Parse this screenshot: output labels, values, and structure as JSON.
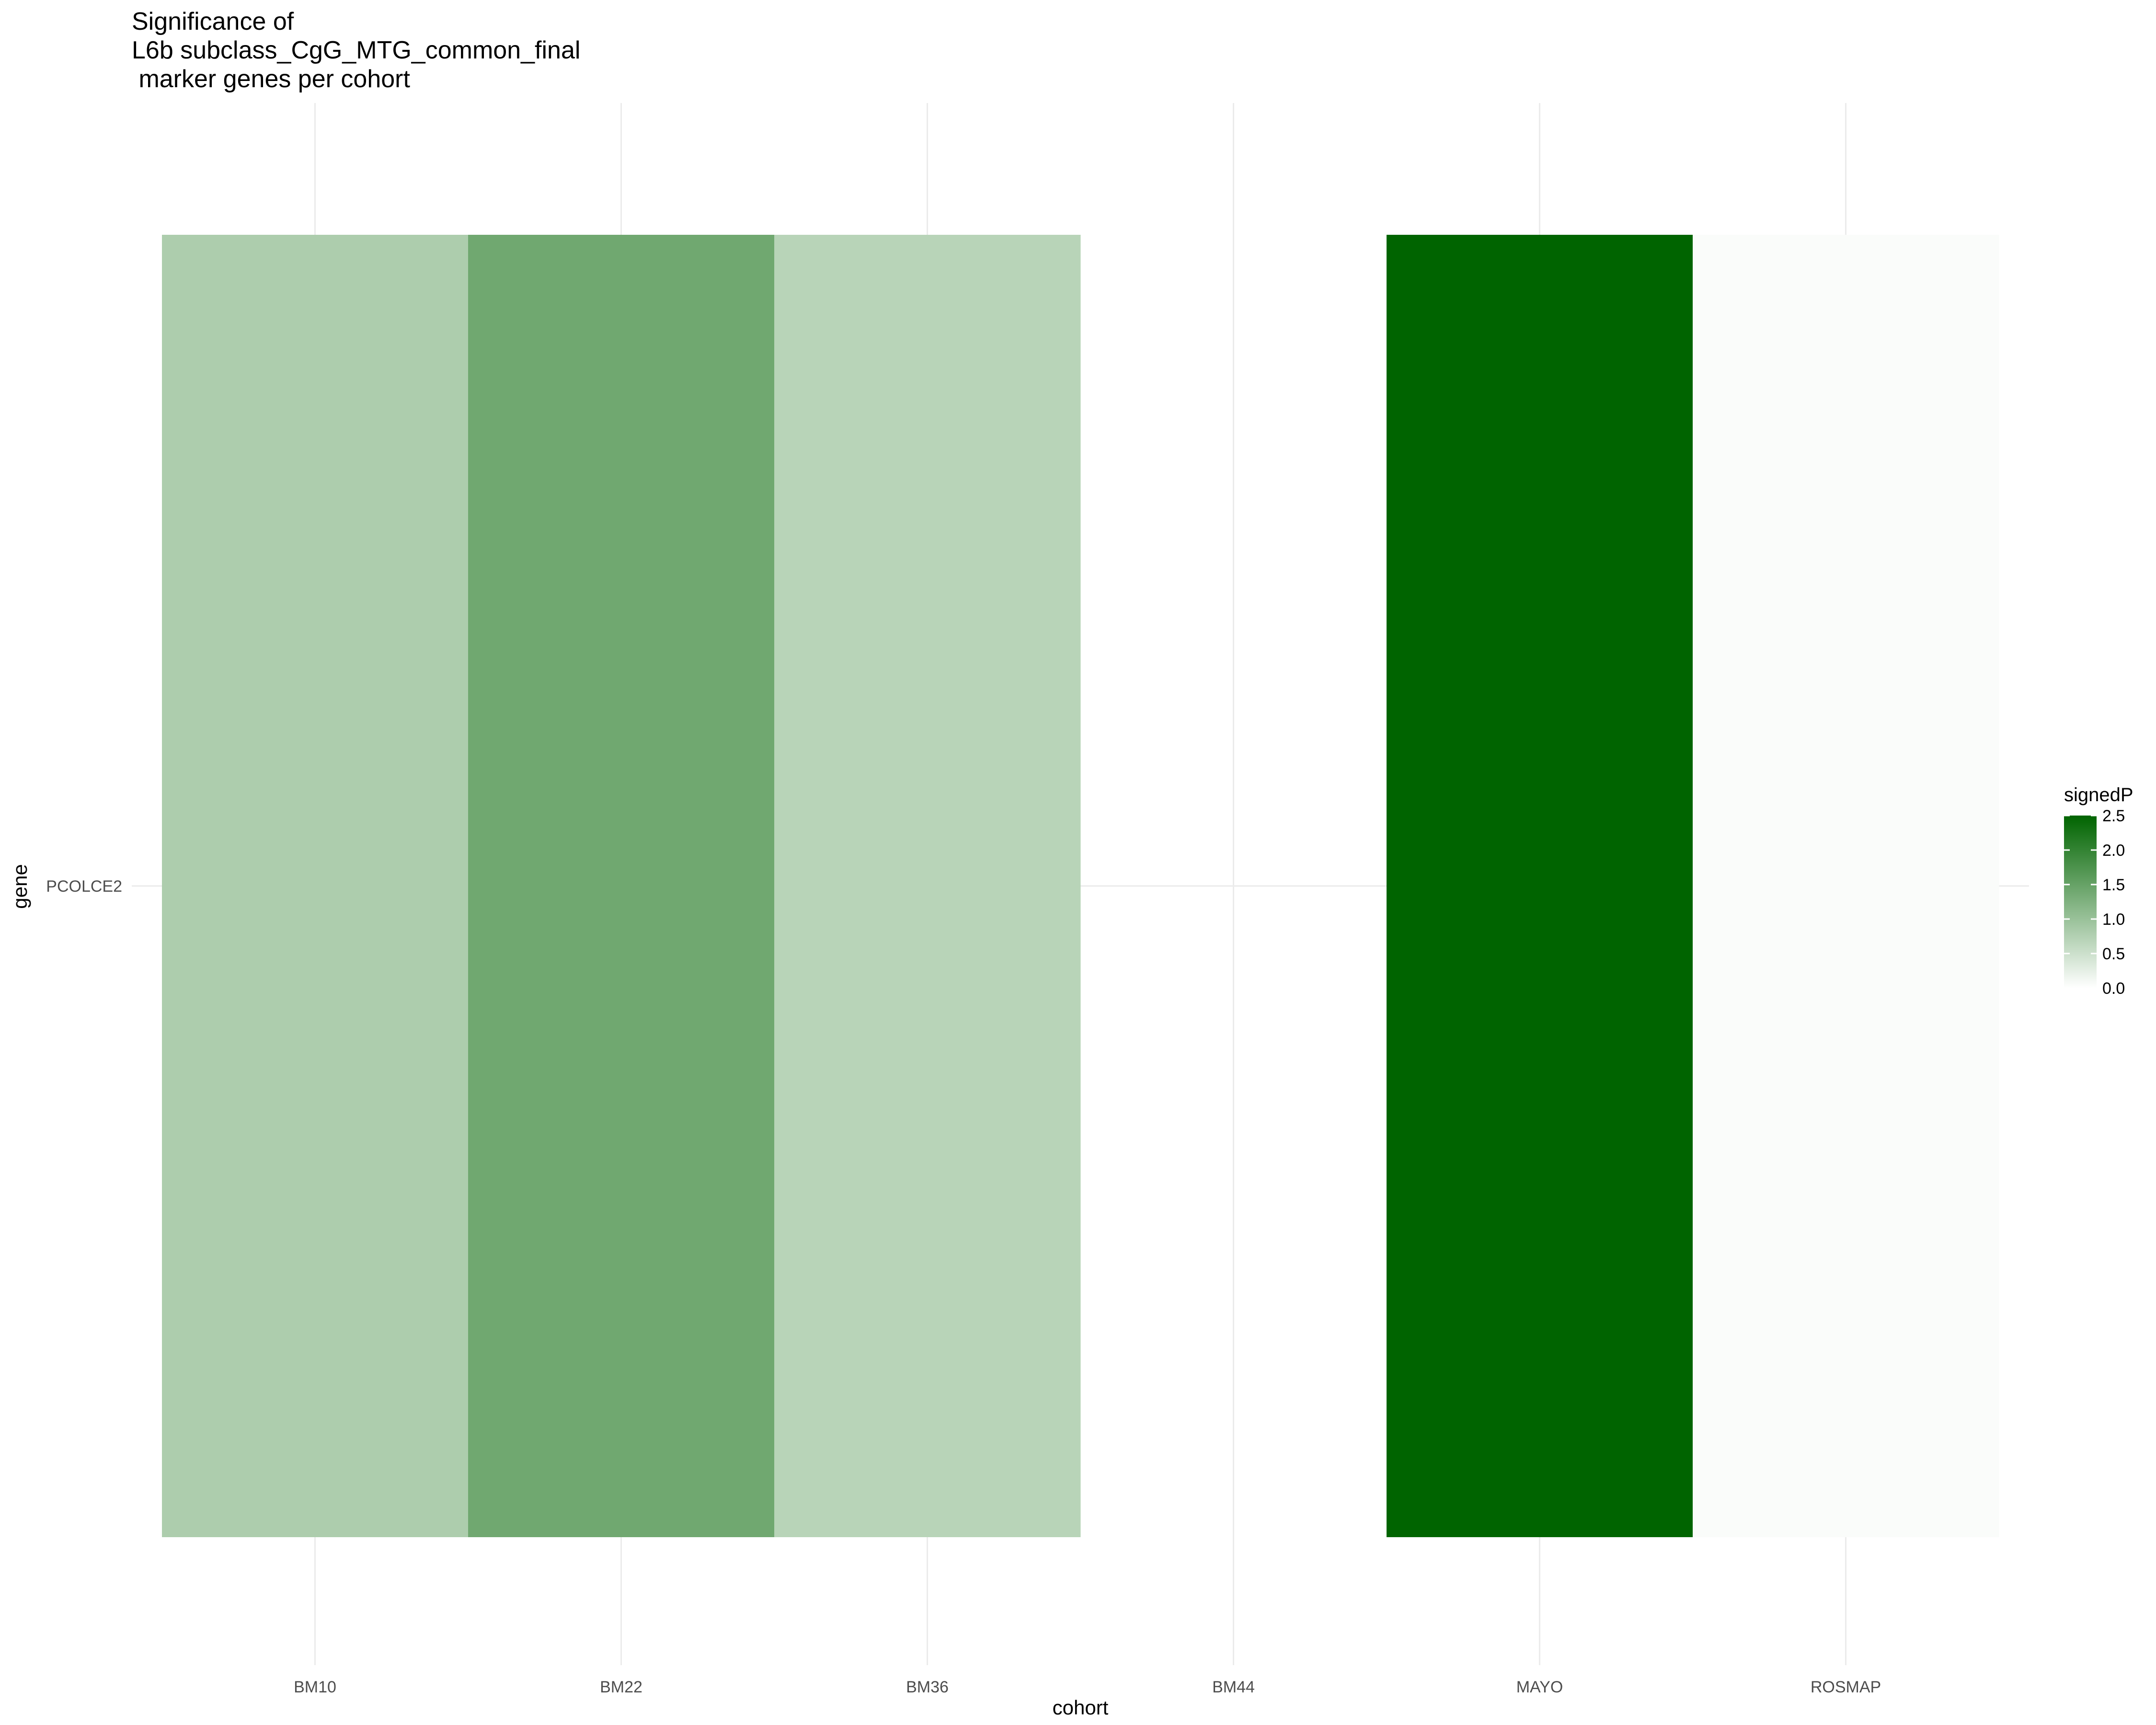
{
  "chart_data": {
    "type": "heatmap",
    "title_lines": [
      "Significance of",
      "L6b subclass_CgG_MTG_common_final",
      " marker genes per cohort"
    ],
    "xlabel": "cohort",
    "ylabel": "gene",
    "categories": [
      "BM10",
      "BM22",
      "BM36",
      "BM44",
      "MAYO",
      "ROSMAP"
    ],
    "genes": [
      "PCOLCE2"
    ],
    "values": [
      [
        0.8,
        1.4,
        0.7,
        null,
        2.5,
        0.05
      ]
    ],
    "colorbar": {
      "title": "signedP",
      "min": 0,
      "max": 2.5,
      "ticks": [
        0.0,
        0.5,
        1.0,
        1.5,
        2.0,
        2.5
      ],
      "tick_labels": [
        "0.0",
        "0.5",
        "1.0",
        "1.5",
        "2.0",
        "2.5"
      ],
      "low_color": "#ffffff",
      "high_color": "#006400"
    },
    "grid": true,
    "legend_position": "right"
  }
}
